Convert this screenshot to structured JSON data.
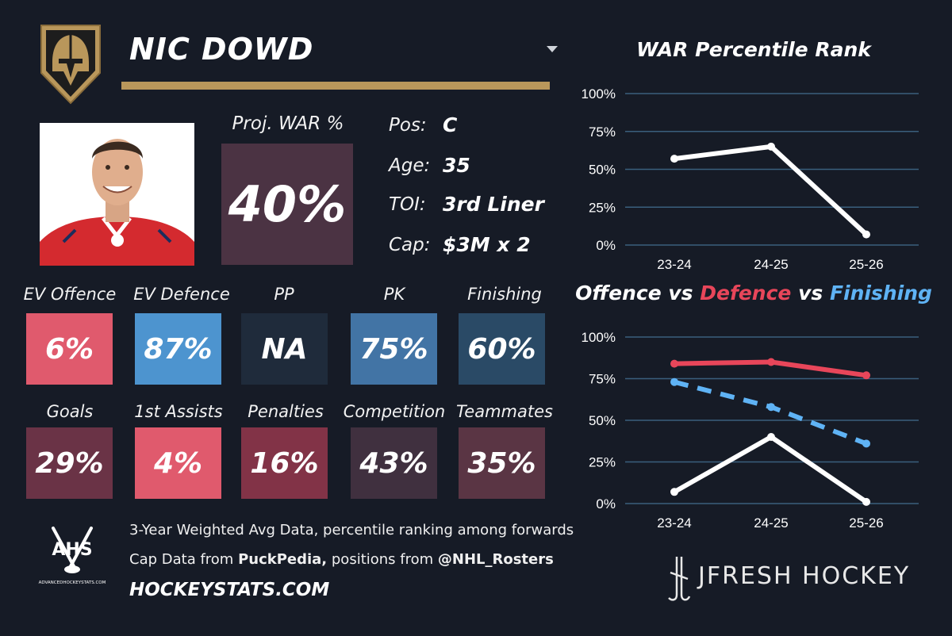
{
  "player": {
    "name": "NIC DOWD",
    "position_label": "Pos:",
    "position": "C",
    "age_label": "Age:",
    "age": "35",
    "toi_label": "TOI:",
    "toi": "3rd Liner",
    "cap_label": "Cap:",
    "cap": "$3M x 2"
  },
  "war": {
    "label": "Proj. WAR %",
    "value": "40%"
  },
  "ratings_row1": [
    {
      "label": "EV Offence",
      "value": "6%"
    },
    {
      "label": "EV Defence",
      "value": "87%"
    },
    {
      "label": "PP",
      "value": "NA"
    },
    {
      "label": "PK",
      "value": "75%"
    },
    {
      "label": "Finishing",
      "value": "60%"
    }
  ],
  "ratings_row2": [
    {
      "label": "Goals",
      "value": "29%"
    },
    {
      "label": "1st Assists",
      "value": "4%"
    },
    {
      "label": "Penalties",
      "value": "16%"
    },
    {
      "label": "Competition",
      "value": "43%"
    },
    {
      "label": "Teammates",
      "value": "35%"
    }
  ],
  "colors": {
    "background": "#161b26",
    "gold": "#b9975b",
    "offence_red": "#e8465a",
    "finishing_blue": "#5fb3f5",
    "line_white": "#ffffff",
    "grid": "#3a5f7d"
  },
  "footer": {
    "line1": "3-Year Weighted Avg Data, percentile ranking among forwards",
    "line2_prefix": "Cap Data from ",
    "line2_source": "PuckPedia,",
    "line2_middle": " positions from ",
    "line2_handle": "@NHL_Rosters",
    "site": "HOCKEYSTATS.COM",
    "ahs_logo_text": "AHS",
    "ahs_logo_subtext": "ADVANCEDHOCKEYSTATS.COM",
    "brand": "JFRESH HOCKEY"
  },
  "chart_data": [
    {
      "type": "line",
      "title": "WAR Percentile Rank",
      "categories": [
        "23-24",
        "24-25",
        "25-26"
      ],
      "y_tick_labels": [
        "100%",
        "75%",
        "50%",
        "25%",
        "0%"
      ],
      "ylim": [
        0,
        100
      ],
      "series": [
        {
          "name": "WAR",
          "color": "#ffffff",
          "style": "solid",
          "values": [
            57,
            65,
            7
          ]
        }
      ]
    },
    {
      "type": "line",
      "title_parts": [
        {
          "text": "Offence vs ",
          "color": "#ffffff"
        },
        {
          "text": "Defence",
          "color": "#e8465a"
        },
        {
          "text": " vs ",
          "color": "#ffffff"
        },
        {
          "text": "Finishing",
          "color": "#5fb3f5"
        }
      ],
      "categories": [
        "23-24",
        "24-25",
        "25-26"
      ],
      "y_tick_labels": [
        "100%",
        "75%",
        "50%",
        "25%",
        "0%"
      ],
      "ylim": [
        0,
        100
      ],
      "series": [
        {
          "name": "Offence",
          "color": "#ffffff",
          "style": "solid",
          "values": [
            7,
            40,
            1
          ]
        },
        {
          "name": "Defence",
          "color": "#e8465a",
          "style": "solid",
          "values": [
            84,
            85,
            77
          ]
        },
        {
          "name": "Finishing",
          "color": "#5fb3f5",
          "style": "dashed",
          "values": [
            73,
            58,
            36
          ]
        }
      ]
    }
  ]
}
